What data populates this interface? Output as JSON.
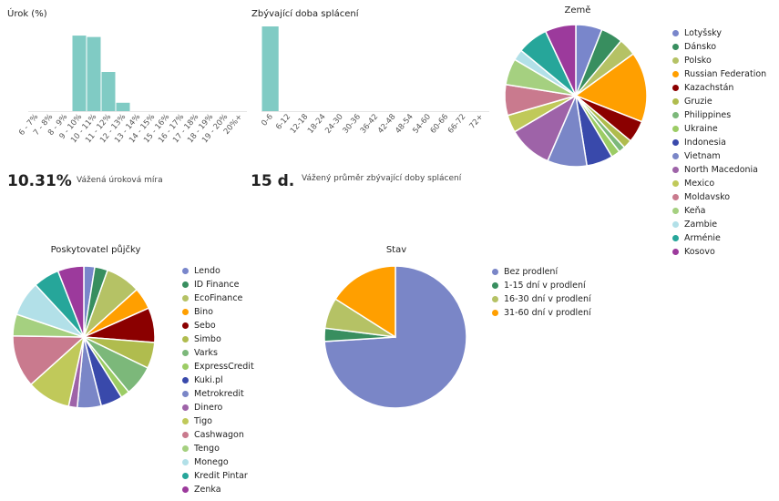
{
  "chart_data": [
    {
      "id": "urok",
      "type": "bar",
      "title": "Úrok (%)",
      "categories": [
        "6 - 7%",
        "7 - 8%",
        "8 - 9%",
        "9 - 10%",
        "10 - 11%",
        "11 - 12%",
        "12 - 13%",
        "13 - 14%",
        "14 - 15%",
        "15 - 16%",
        "16 - 17%",
        "17 - 18%",
        "18 - 19%",
        "19 - 20%",
        "20%+"
      ],
      "values": [
        0,
        0,
        0,
        27,
        26.5,
        14,
        3,
        0,
        0,
        0,
        0,
        0,
        0,
        0,
        0
      ],
      "color": "#80cbc4",
      "ylim": [
        0,
        28
      ],
      "stat_value": "10.31%",
      "stat_label": "Vážená úroková míra"
    },
    {
      "id": "doba",
      "type": "bar",
      "title": "Zbývající doba splácení",
      "categories": [
        "0-6",
        "6-12",
        "12-18",
        "18-24",
        "24-30",
        "30-36",
        "36-42",
        "42-48",
        "48-54",
        "54-60",
        "60-66",
        "66-72",
        "72+"
      ],
      "values": [
        100,
        0,
        0,
        0,
        0,
        0,
        0,
        0,
        0,
        0,
        0,
        0,
        0
      ],
      "color": "#80cbc4",
      "ylim": [
        0,
        100
      ],
      "stat_value": "15 d.",
      "stat_label": "Vážený průměr zbývající doby splácení"
    },
    {
      "id": "zeme",
      "type": "pie",
      "title": "Země",
      "legend": "right",
      "slices": [
        {
          "label": "Lotyšsky",
          "value": 6,
          "color": "#7986cb"
        },
        {
          "label": "Dánsko",
          "value": 5,
          "color": "#388e5f"
        },
        {
          "label": "Polsko",
          "value": 4,
          "color": "#b5c265"
        },
        {
          "label": "Russian Federation",
          "value": 16,
          "color": "#ff9f00"
        },
        {
          "label": "Kazachstán",
          "value": 5,
          "color": "#8b0000"
        },
        {
          "label": "Gruzie",
          "value": 2,
          "color": "#b0bc4e"
        },
        {
          "label": "Philippines",
          "value": 1.5,
          "color": "#7cb87a"
        },
        {
          "label": "Ukraine",
          "value": 2,
          "color": "#9ccc65"
        },
        {
          "label": "Indonesia",
          "value": 6,
          "color": "#3949ab"
        },
        {
          "label": "Vietnam",
          "value": 9,
          "color": "#7a86c7"
        },
        {
          "label": "North Macedonia",
          "value": 10,
          "color": "#9e63a8"
        },
        {
          "label": "Mexico",
          "value": 4,
          "color": "#c0c95a"
        },
        {
          "label": "Moldavsko",
          "value": 7,
          "color": "#c97a8e"
        },
        {
          "label": "Keňa",
          "value": 6,
          "color": "#a5d080"
        },
        {
          "label": "Zambie",
          "value": 2.5,
          "color": "#b2e0e8"
        },
        {
          "label": "Arménie",
          "value": 7,
          "color": "#26a69a"
        },
        {
          "label": "Kosovo",
          "value": 7,
          "color": "#9c3a9c"
        }
      ]
    },
    {
      "id": "poskytovatel",
      "type": "pie",
      "title": "Poskytovatel půjčky",
      "legend": "right",
      "slices": [
        {
          "label": "Lendo",
          "value": 2.5,
          "color": "#7986cb"
        },
        {
          "label": "ID Finance",
          "value": 3,
          "color": "#388e5f"
        },
        {
          "label": "EcoFinance",
          "value": 8,
          "color": "#b5c265"
        },
        {
          "label": "Bino",
          "value": 5,
          "color": "#ff9f00"
        },
        {
          "label": "Sebo",
          "value": 8,
          "color": "#8b0000"
        },
        {
          "label": "Simbo",
          "value": 6,
          "color": "#b0bc4e"
        },
        {
          "label": "Varks",
          "value": 7,
          "color": "#7cb87a"
        },
        {
          "label": "ExpressCredit",
          "value": 2,
          "color": "#9ccc65"
        },
        {
          "label": "Kuki.pl",
          "value": 5,
          "color": "#3949ab"
        },
        {
          "label": "Metrokredit",
          "value": 5.5,
          "color": "#7a86c7"
        },
        {
          "label": "Dinero",
          "value": 2,
          "color": "#9e63a8"
        },
        {
          "label": "Tigo",
          "value": 10,
          "color": "#c0c95a"
        },
        {
          "label": "Cashwagon",
          "value": 12,
          "color": "#c97a8e"
        },
        {
          "label": "Tengo",
          "value": 5,
          "color": "#a5d080"
        },
        {
          "label": "Monego",
          "value": 8,
          "color": "#b2e0e8"
        },
        {
          "label": "Kredit Pintar",
          "value": 6,
          "color": "#26a69a"
        },
        {
          "label": "Zenka",
          "value": 6,
          "color": "#9c3a9c"
        }
      ]
    },
    {
      "id": "stav",
      "type": "pie",
      "title": "Stav",
      "legend": "right",
      "slices": [
        {
          "label": "Bez prodlení",
          "value": 74,
          "color": "#7a86c7"
        },
        {
          "label": "1-15 dní v prodlení",
          "value": 3,
          "color": "#388e5f"
        },
        {
          "label": "16-30 dní v prodlení",
          "value": 7,
          "color": "#b5c265"
        },
        {
          "label": "31-60 dní v prodlení",
          "value": 16,
          "color": "#ff9f00"
        }
      ]
    }
  ]
}
